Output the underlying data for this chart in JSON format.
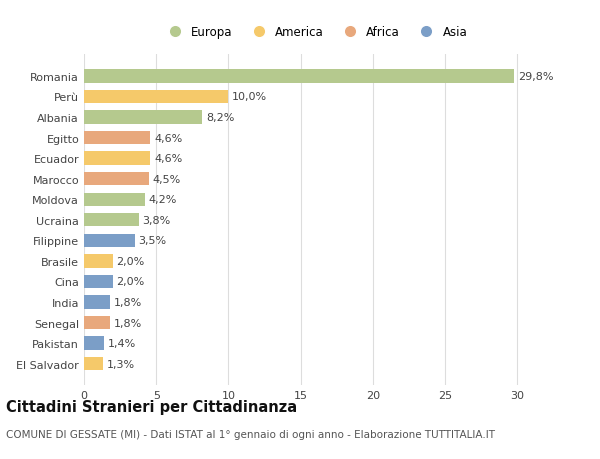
{
  "countries": [
    "Romania",
    "Perù",
    "Albania",
    "Egitto",
    "Ecuador",
    "Marocco",
    "Moldova",
    "Ucraina",
    "Filippine",
    "Brasile",
    "Cina",
    "India",
    "Senegal",
    "Pakistan",
    "El Salvador"
  ],
  "values": [
    29.8,
    10.0,
    8.2,
    4.6,
    4.6,
    4.5,
    4.2,
    3.8,
    3.5,
    2.0,
    2.0,
    1.8,
    1.8,
    1.4,
    1.3
  ],
  "labels": [
    "29,8%",
    "10,0%",
    "8,2%",
    "4,6%",
    "4,6%",
    "4,5%",
    "4,2%",
    "3,8%",
    "3,5%",
    "2,0%",
    "2,0%",
    "1,8%",
    "1,8%",
    "1,4%",
    "1,3%"
  ],
  "regions": [
    "Europa",
    "America",
    "Europa",
    "Africa",
    "America",
    "Africa",
    "Europa",
    "Europa",
    "Asia",
    "America",
    "Asia",
    "Asia",
    "Africa",
    "Asia",
    "America"
  ],
  "region_colors": {
    "Europa": "#b5c98e",
    "America": "#f5c96a",
    "Africa": "#e8a87c",
    "Asia": "#7b9ec7"
  },
  "legend_order": [
    "Europa",
    "America",
    "Africa",
    "Asia"
  ],
  "xlim": [
    0,
    32
  ],
  "xticks": [
    0,
    5,
    10,
    15,
    20,
    25,
    30
  ],
  "title": "Cittadini Stranieri per Cittadinanza",
  "subtitle": "COMUNE DI GESSATE (MI) - Dati ISTAT al 1° gennaio di ogni anno - Elaborazione TUTTITALIA.IT",
  "bg_color": "#ffffff",
  "bar_height": 0.65,
  "grid_color": "#dddddd",
  "label_fontsize": 8,
  "title_fontsize": 10.5,
  "subtitle_fontsize": 7.5,
  "ytick_fontsize": 8,
  "xtick_fontsize": 8,
  "legend_fontsize": 8.5
}
